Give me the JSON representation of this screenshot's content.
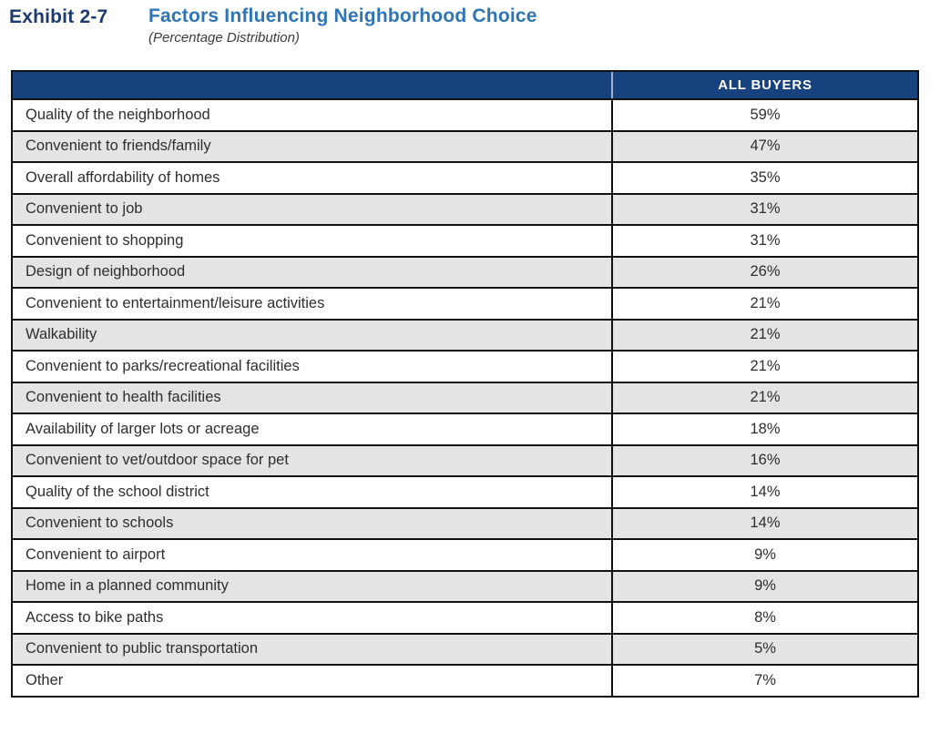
{
  "exhibit": {
    "label": "Exhibit 2-7",
    "title": "Factors Influencing Neighborhood Choice",
    "subtitle": "(Percentage Distribution)"
  },
  "table": {
    "header": {
      "factor": "",
      "all_buyers": "ALL BUYERS"
    },
    "rows": [
      {
        "factor": "Quality of the neighborhood",
        "all_buyers": "59%"
      },
      {
        "factor": "Convenient to friends/family",
        "all_buyers": "47%"
      },
      {
        "factor": "Overall affordability of homes",
        "all_buyers": "35%"
      },
      {
        "factor": "Convenient to job",
        "all_buyers": "31%"
      },
      {
        "factor": "Convenient to shopping",
        "all_buyers": "31%"
      },
      {
        "factor": "Design of neighborhood",
        "all_buyers": "26%"
      },
      {
        "factor": "Convenient to entertainment/leisure activities",
        "all_buyers": "21%"
      },
      {
        "factor": "Walkability",
        "all_buyers": "21%"
      },
      {
        "factor": "Convenient to parks/recreational facilities",
        "all_buyers": "21%"
      },
      {
        "factor": "Convenient to health facilities",
        "all_buyers": "21%"
      },
      {
        "factor": "Availability of larger lots or acreage",
        "all_buyers": "18%"
      },
      {
        "factor": "Convenient to vet/outdoor space for pet",
        "all_buyers": "16%"
      },
      {
        "factor": "Quality of the school district",
        "all_buyers": "14%"
      },
      {
        "factor": "Convenient to schools",
        "all_buyers": "14%"
      },
      {
        "factor": "Convenient to airport",
        "all_buyers": "9%"
      },
      {
        "factor": "Home in a planned community",
        "all_buyers": "9%"
      },
      {
        "factor": "Access to bike paths",
        "all_buyers": "8%"
      },
      {
        "factor": "Convenient to public transportation",
        "all_buyers": "5%"
      },
      {
        "factor": "Other",
        "all_buyers": "7%"
      }
    ]
  },
  "colors": {
    "header_bg": "#17427d",
    "exhibit_label_blue": "#1e3a6e",
    "title_blue": "#2e75b6",
    "stripe_gray": "#e4e4e4",
    "border_black": "#111111",
    "header_divider": "#9db1cd"
  }
}
